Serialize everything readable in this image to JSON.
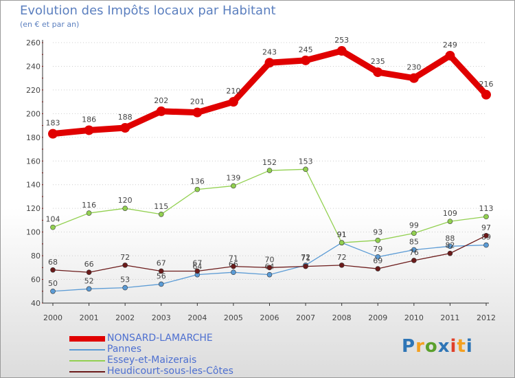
{
  "title": "Evolution des Impôts locaux par Habitant",
  "subtitle": "(en € et par an)",
  "brand": "Proxiti",
  "colors": {
    "background": "#ffffff",
    "axis": "#333333",
    "grid": "#cccccc",
    "tick": "#cc0000",
    "text": "#5b7fbf",
    "label": "#444444"
  },
  "chart_data": {
    "type": "line",
    "title": "Evolution des Impôts locaux par Habitant",
    "subtitle": "(en € et par an)",
    "xlabel": "",
    "ylabel": "",
    "ylim": [
      40,
      260
    ],
    "yticks": [
      "40",
      "60",
      "80",
      "100",
      "120",
      "140",
      "160",
      "180",
      "200",
      "220",
      "240",
      "260"
    ],
    "categories": [
      "2000",
      "2001",
      "2002",
      "2003",
      "2004",
      "2005",
      "2006",
      "2007",
      "2008",
      "2009",
      "2010",
      "2011",
      "2012"
    ],
    "series": [
      {
        "name": "NONSARD-LAMARCHE",
        "color": "#e00000",
        "values": [
          183,
          186,
          188,
          202,
          201,
          210,
          243,
          245,
          253,
          235,
          230,
          249,
          216
        ]
      },
      {
        "name": "Pannes",
        "color": "#5b9bd5",
        "values": [
          50,
          52,
          53,
          56,
          64,
          66,
          64,
          72,
          91,
          79,
          85,
          88,
          89
        ]
      },
      {
        "name": "Essey-et-Maizerais",
        "color": "#92d050",
        "values": [
          104,
          116,
          120,
          115,
          136,
          139,
          152,
          153,
          91,
          93,
          99,
          109,
          113
        ]
      },
      {
        "name": "Heudicourt-sous-les-Côtes",
        "color": "#6b1a1a",
        "values": [
          68,
          66,
          72,
          67,
          67,
          71,
          70,
          71,
          72,
          69,
          76,
          82,
          97
        ]
      }
    ]
  }
}
